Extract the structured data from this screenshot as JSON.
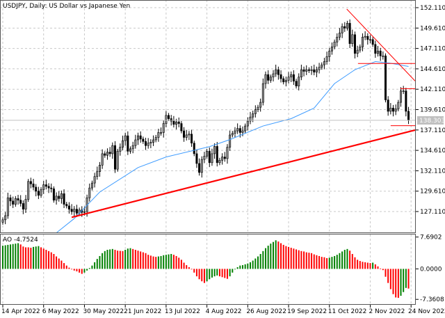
{
  "title": "USDJPY, Daily:  US Dollar vs Japanese Yen",
  "current_price_label": "138.303",
  "ao_label": "AO -4.7524",
  "colors": {
    "bull_body": "#8c8c8c",
    "bear_body": "#000000",
    "ma": "#3d9bff",
    "trend": "#ff0000",
    "ao_up": "#008000",
    "ao_down": "#ff0000",
    "current_price_bg": "#c0c0c0",
    "grid": "#c8c8c8"
  },
  "chart_data": [
    {
      "type": "candlestick",
      "title": "USDJPY, Daily:  US Dollar vs Japanese Yen",
      "ylim": [
        124.55,
        153.05
      ],
      "y_ticks": [
        "152.110",
        "149.610",
        "147.110",
        "144.610",
        "142.110",
        "139.610",
        "137.110",
        "134.610",
        "132.110",
        "129.610",
        "127.110"
      ],
      "x_ticks": [
        {
          "bar": 0,
          "label": "14 Apr 2022"
        },
        {
          "bar": 16,
          "label": "6 May 2022"
        },
        {
          "bar": 32,
          "label": "30 May 2022"
        },
        {
          "bar": 48,
          "label": "21 Jun 2022"
        },
        {
          "bar": 64,
          "label": "13 Jul 2022"
        },
        {
          "bar": 80,
          "label": "4 Aug 2022"
        },
        {
          "bar": 96,
          "label": "26 Aug 2022"
        },
        {
          "bar": 112,
          "label": "19 Sep 2022"
        },
        {
          "bar": 128,
          "label": "11 Oct 2022"
        },
        {
          "bar": 144,
          "label": "2 Nov 2022"
        },
        {
          "bar": 160,
          "label": "24 Nov 2022"
        }
      ],
      "open_first": 125.8,
      "close": [
        126.1,
        126.6,
        128.8,
        128.4,
        128.0,
        128.7,
        128.5,
        128.1,
        127.4,
        128.6,
        130.8,
        130.5,
        130.1,
        129.6,
        129.1,
        129.8,
        130.4,
        130.2,
        130.0,
        129.9,
        128.5,
        129.0,
        128.7,
        129.3,
        128.0,
        127.8,
        127.4,
        127.1,
        127.4,
        126.9,
        127.3,
        127.0,
        127.1,
        128.8,
        130.0,
        130.6,
        131.4,
        132.0,
        132.8,
        134.2,
        134.0,
        134.4,
        134.2,
        135.2,
        132.3,
        134.5,
        135.0,
        135.8,
        136.4,
        134.5,
        134.8,
        135.2,
        135.9,
        136.4,
        136.0,
        135.7,
        135.2,
        135.5,
        135.6,
        135.9,
        136.2,
        136.8,
        136.8,
        137.9,
        138.9,
        138.5,
        138.2,
        137.8,
        138.1,
        137.9,
        137.0,
        136.2,
        136.5,
        136.6,
        135.5,
        134.2,
        133.0,
        131.9,
        133.5,
        133.9,
        134.5,
        133.1,
        134.2,
        135.1,
        133.1,
        133.4,
        133.8,
        133.6,
        135.0,
        136.5,
        136.7,
        137.0,
        137.3,
        136.8,
        137.0,
        137.6,
        138.2,
        138.7,
        139.1,
        139.6,
        139.9,
        140.5,
        142.8,
        143.9,
        143.2,
        143.6,
        144.0,
        144.5,
        143.9,
        143.4,
        143.0,
        143.2,
        143.6,
        143.9,
        143.1,
        142.5,
        143.6,
        144.5,
        144.3,
        144.5,
        144.4,
        144.5,
        144.2,
        144.5,
        144.8,
        145.1,
        145.5,
        146.1,
        146.8,
        147.3,
        147.9,
        148.5,
        149.0,
        149.8,
        149.6,
        150.2,
        147.7,
        148.8,
        146.5,
        146.9,
        147.3,
        148.5,
        148.6,
        148.2,
        148.2,
        147.6,
        146.5,
        146.8,
        146.2,
        146.2,
        140.8,
        139.4,
        139.8,
        139.4,
        139.7,
        140.5,
        141.9,
        141.9,
        139.4,
        138.303
      ],
      "moving_average": [
        [
          21,
          124.5
        ],
        [
          28,
          126.25
        ],
        [
          38,
          129.5
        ],
        [
          53,
          132.5
        ],
        [
          64,
          133.8
        ],
        [
          81,
          135.07
        ],
        [
          89,
          135.93
        ],
        [
          102,
          137.6
        ],
        [
          113,
          138.5
        ],
        [
          122,
          139.8
        ],
        [
          130,
          142.8
        ],
        [
          138,
          144.5
        ],
        [
          146,
          145.5
        ],
        [
          152,
          145.3
        ],
        [
          159,
          144.9
        ]
      ],
      "trendlines": [
        {
          "name": "support",
          "from": [
            27,
            126.4
          ],
          "to": [
            161.6,
            137.1
          ],
          "thick": true
        },
        {
          "name": "resistance",
          "from": [
            134.8,
            151.94
          ],
          "to": [
            161.6,
            143.12
          ],
          "thick": false
        },
        {
          "name": "level-145",
          "from": [
            139.2,
            145.26
          ],
          "to": [
            161.6,
            145.26
          ],
          "thick": false
        },
        {
          "name": "level-142",
          "from": [
            155.8,
            142.18
          ],
          "to": [
            161.6,
            142.18
          ],
          "thick": false
        },
        {
          "name": "level-137",
          "from": [
            152,
            137.64
          ],
          "to": [
            161.6,
            137.64
          ],
          "thick": false
        }
      ],
      "current_price": 138.303
    },
    {
      "type": "bar",
      "title": "AO -4.7524",
      "ylim": [
        -8.5,
        8.3
      ],
      "y_ticks": [
        {
          "value": 7.6902,
          "label": "7.6902"
        },
        {
          "value": 0,
          "label": "0.0000"
        },
        {
          "value": -7.3608,
          "label": "-7.3608"
        }
      ],
      "values": [
        5.6,
        5.7,
        5.8,
        5.9,
        6.0,
        6.1,
        6.2,
        5.9,
        5.4,
        5.2,
        5.2,
        5.1,
        5.3,
        5.4,
        5.5,
        5.2,
        4.9,
        4.6,
        4.3,
        4.0,
        3.6,
        3.0,
        2.5,
        2.0,
        1.4,
        0.8,
        0.3,
        -0.1,
        -0.4,
        -0.6,
        -0.9,
        -1.2,
        -0.9,
        -0.4,
        0.2,
        0.8,
        1.6,
        2.4,
        3.1,
        3.8,
        4.3,
        4.6,
        4.7,
        4.8,
        4.6,
        4.4,
        4.35,
        4.3,
        4.6,
        4.9,
        5.0,
        4.8,
        4.6,
        4.4,
        4.2,
        4.0,
        3.8,
        3.4,
        3.2,
        3.0,
        2.9,
        3.0,
        3.1,
        3.3,
        3.4,
        3.5,
        3.6,
        3.4,
        3.1,
        2.7,
        2.2,
        1.5,
        0.9,
        0.4,
        -0.1,
        -0.9,
        -1.8,
        -2.5,
        -3.0,
        -3.4,
        -3.0,
        -2.5,
        -2.1,
        -1.8,
        -1.6,
        -1.8,
        -2.0,
        -2.2,
        -2.4,
        -1.8,
        -0.9,
        -0.1,
        0.4,
        0.8,
        0.9,
        1.1,
        1.3,
        1.6,
        2.0,
        2.5,
        3.0,
        3.6,
        4.3,
        5.0,
        5.6,
        6.1,
        6.5,
        6.9,
        6.6,
        6.2,
        5.8,
        5.5,
        5.3,
        5.1,
        4.9,
        4.7,
        4.5,
        4.3,
        4.2,
        4.0,
        3.9,
        3.8,
        3.5,
        3.3,
        3.1,
        2.9,
        2.8,
        2.6,
        2.7,
        2.9,
        3.1,
        3.4,
        3.8,
        4.2,
        4.6,
        4.8,
        4.4,
        3.6,
        2.8,
        2.2,
        1.9,
        1.7,
        1.6,
        1.5,
        1.4,
        1.5,
        1.1,
        0.6,
        0.1,
        -0.3,
        -1.9,
        -3.4,
        -4.9,
        -6.1,
        -6.9,
        -7.0,
        -6.5,
        -5.6,
        -4.6,
        -4.7524
      ]
    }
  ]
}
